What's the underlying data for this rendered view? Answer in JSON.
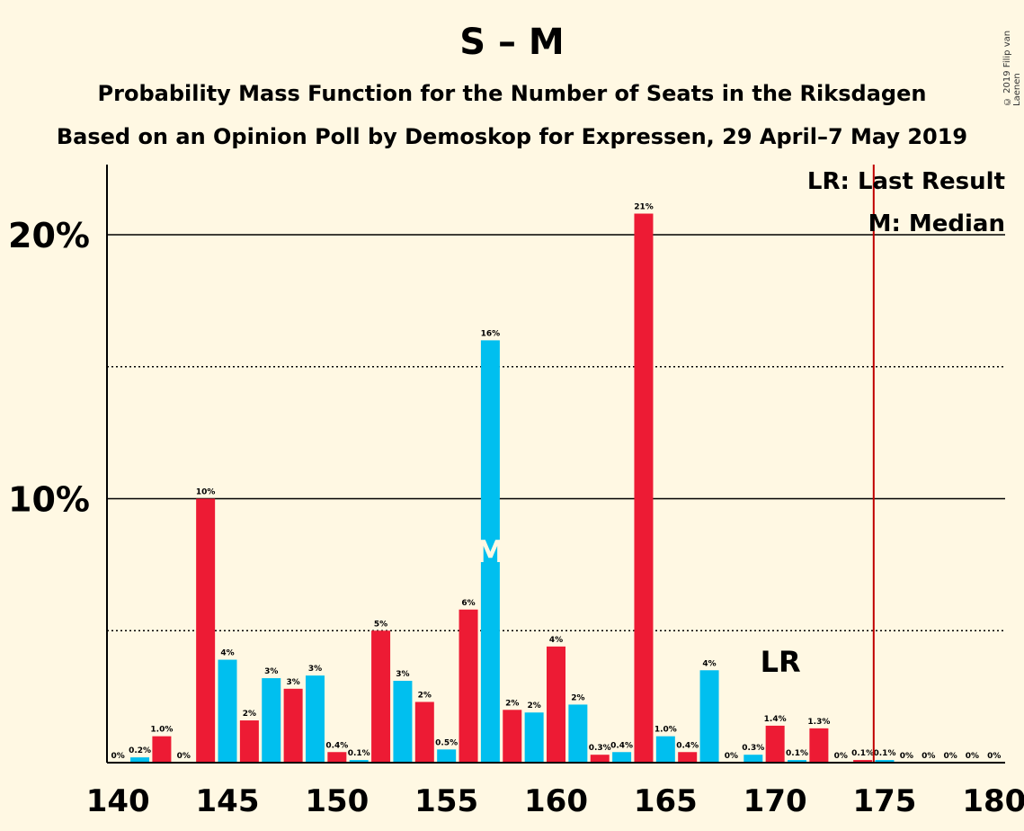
{
  "title": "S – M",
  "subtitle1": "Probability Mass Function for the Number of Seats in the Riksdagen",
  "subtitle2": "Based on an Opinion Poll by Demoskop for Expressen, 29 April–7 May 2019",
  "copyright": "© 2019 Filip van Laenen",
  "legend": {
    "last_result": "LR: Last Result",
    "median": "M: Median"
  },
  "markers": {
    "median_label": "M",
    "last_result_label": "LR"
  },
  "colors": {
    "red": "#ED1B34",
    "blue": "#00BFEF",
    "background": "#FFF8E3",
    "lr_line": "#C00000"
  },
  "chart_data": {
    "type": "bar",
    "x": [
      140,
      141,
      142,
      143,
      144,
      145,
      146,
      147,
      148,
      149,
      150,
      151,
      152,
      153,
      154,
      155,
      156,
      157,
      158,
      159,
      160,
      161,
      162,
      163,
      164,
      165,
      166,
      167,
      168,
      169,
      170,
      171,
      172,
      173,
      174,
      175,
      176,
      177,
      178,
      179,
      180
    ],
    "values": [
      0,
      0.2,
      1.0,
      0,
      10.0,
      3.9,
      1.6,
      3.2,
      2.8,
      3.3,
      0.4,
      0.1,
      5.0,
      3.1,
      2.3,
      0.5,
      5.8,
      16.0,
      2.0,
      1.9,
      4.4,
      2.2,
      0.3,
      0.4,
      20.8,
      1.0,
      0.4,
      3.5,
      0,
      0.3,
      1.4,
      0.1,
      1.3,
      0,
      0.1,
      0.1,
      0,
      0,
      0,
      0,
      0
    ],
    "labels": [
      "0%",
      "0.2%",
      "1.0%",
      "0%",
      "10%",
      "4%",
      "2%",
      "3%",
      "3%",
      "3%",
      "0.4%",
      "0.1%",
      "5%",
      "3%",
      "2%",
      "0.5%",
      "6%",
      "16%",
      "2%",
      "2%",
      "4%",
      "2%",
      "0.3%",
      "0.4%",
      "21%",
      "1.0%",
      "0.4%",
      "4%",
      "0%",
      "0.3%",
      "1.4%",
      "0.1%",
      "1.3%",
      "0%",
      "0.1%",
      "0.1%",
      "0%",
      "0%",
      "0%",
      "0%",
      "0%"
    ],
    "colors": [
      "red",
      "blue",
      "red",
      "blue",
      "red",
      "blue",
      "red",
      "blue",
      "red",
      "blue",
      "red",
      "blue",
      "red",
      "blue",
      "red",
      "blue",
      "red",
      "blue",
      "red",
      "blue",
      "red",
      "blue",
      "red",
      "blue",
      "red",
      "blue",
      "red",
      "blue",
      "red",
      "blue",
      "red",
      "blue",
      "red",
      "blue",
      "red",
      "blue",
      "red",
      "blue",
      "red",
      "blue",
      "red"
    ],
    "xticks": [
      140,
      145,
      150,
      155,
      160,
      165,
      170,
      175,
      180
    ],
    "xtick_labels": [
      "140",
      "145",
      "150",
      "155",
      "160",
      "165",
      "170",
      "175",
      "180"
    ],
    "yticks_major": [
      10,
      20
    ],
    "ytick_labels": [
      "10%",
      "20%"
    ],
    "yticks_minor": [
      5,
      15
    ],
    "ylim": [
      0,
      22.5
    ],
    "xlim": [
      139.5,
      180.5
    ],
    "median": 157,
    "last_result": 170,
    "majority_line": 174.5
  }
}
